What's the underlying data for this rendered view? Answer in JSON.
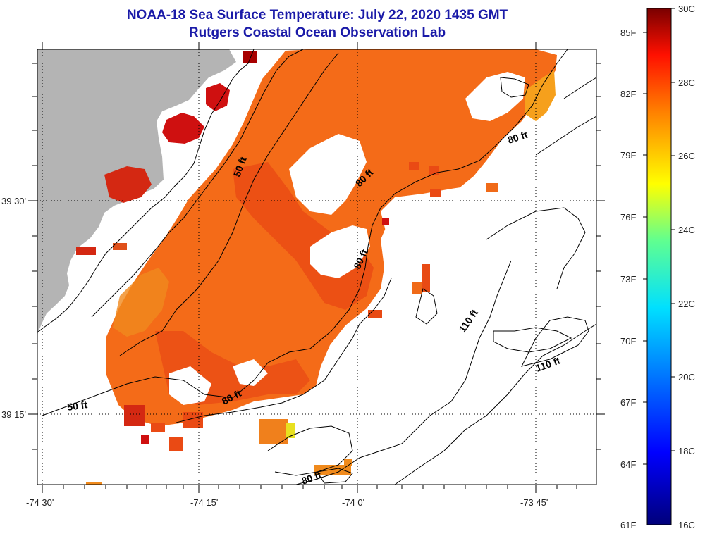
{
  "title_line1": "NOAA-18 Sea Surface Temperature:  July 22, 2020 1435 GMT",
  "title_line2": "Rutgers Coastal Ocean Observation Lab",
  "map": {
    "lat_labels": [
      "39 30'",
      "39 15'"
    ],
    "lon_labels": [
      "-74 30'",
      "-74 15'",
      "-74 0'",
      "-73 45'"
    ],
    "contour_labels": [
      "50 ft",
      "50 ft",
      "80 ft",
      "80 ft",
      "80 ft",
      "80 ft",
      "80 ft",
      "110 ft",
      "110 ft"
    ],
    "land_color": "#b4b4b4",
    "no_data_color": "#ffffff"
  },
  "colorbar": {
    "fahrenheit": [
      "85F",
      "82F",
      "79F",
      "76F",
      "73F",
      "70F",
      "67F",
      "64F",
      "61F"
    ],
    "celsius": [
      "30C",
      "28C",
      "26C",
      "24C",
      "22C",
      "20C",
      "18C",
      "16C"
    ],
    "colors": [
      "#000080",
      "#0000ff",
      "#0080ff",
      "#00ffff",
      "#80ff80",
      "#ffff00",
      "#ff8000",
      "#ff0000",
      "#800000"
    ]
  }
}
